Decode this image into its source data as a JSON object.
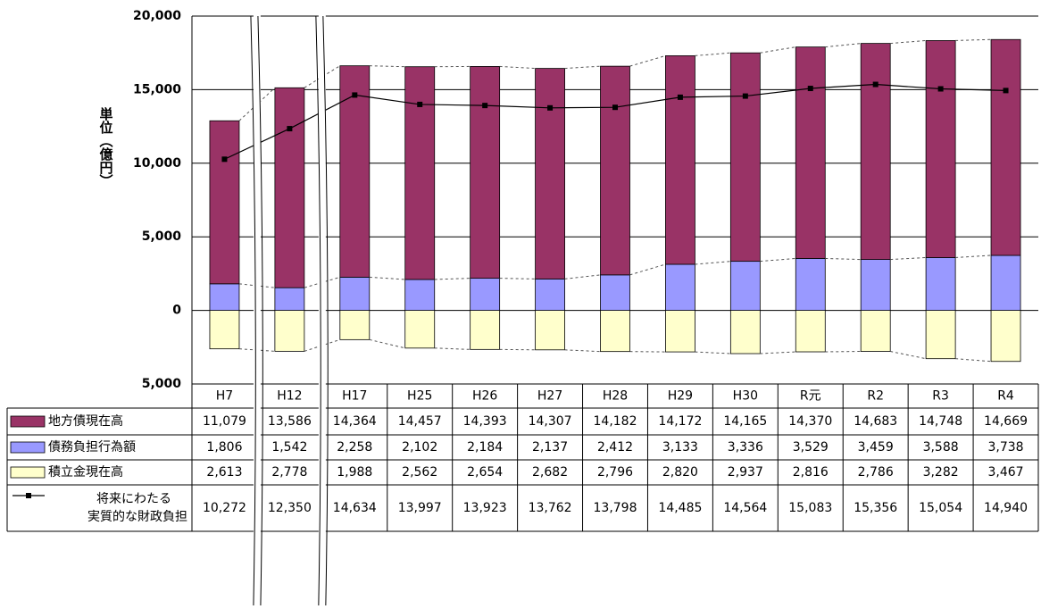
{
  "chart_data": {
    "type": "stacked-bar-line",
    "y_label": "単位（億円）",
    "categories": [
      "H7",
      "H12",
      "H17",
      "H25",
      "H26",
      "H27",
      "H28",
      "H29",
      "H30",
      "R元",
      "R2",
      "R3",
      "R4"
    ],
    "series": [
      {
        "name": "地方債現在高",
        "kind": "bar",
        "color": "#993366",
        "values": [
          11079,
          13586,
          14364,
          14457,
          14393,
          14307,
          14182,
          14172,
          14165,
          14370,
          14683,
          14748,
          14669
        ],
        "value_labels": [
          "11,079",
          "13,586",
          "14,364",
          "14,457",
          "14,393",
          "14,307",
          "14,182",
          "14,172",
          "14,165",
          "14,370",
          "14,683",
          "14,748",
          "14,669"
        ]
      },
      {
        "name": "債務負担行為額",
        "kind": "bar",
        "color": "#9999ff",
        "values": [
          1806,
          1542,
          2258,
          2102,
          2184,
          2137,
          2412,
          3133,
          3336,
          3529,
          3459,
          3588,
          3738
        ],
        "value_labels": [
          "1,806",
          "1,542",
          "2,258",
          "2,102",
          "2,184",
          "2,137",
          "2,412",
          "3,133",
          "3,336",
          "3,529",
          "3,459",
          "3,588",
          "3,738"
        ]
      },
      {
        "name": "積立金現在高",
        "kind": "bar",
        "color": "#ffffcc",
        "values": [
          -2613,
          -2778,
          -1988,
          -2562,
          -2654,
          -2682,
          -2796,
          -2820,
          -2937,
          -2816,
          -2786,
          -3282,
          -3467
        ],
        "value_labels": [
          "2,613",
          "2,778",
          "1,988",
          "2,562",
          "2,654",
          "2,682",
          "2,796",
          "2,820",
          "2,937",
          "2,816",
          "2,786",
          "3,282",
          "3,467"
        ]
      },
      {
        "name": "将来にわたる\n実質的な財政負担",
        "kind": "line",
        "color": "#000000",
        "values": [
          10272,
          12350,
          14634,
          13997,
          13923,
          13762,
          13798,
          14485,
          14564,
          15083,
          15356,
          15054,
          14940
        ],
        "value_labels": [
          "10,272",
          "12,350",
          "14,634",
          "13,997",
          "13,923",
          "13,762",
          "13,798",
          "14,485",
          "14,564",
          "15,083",
          "15,356",
          "15,054",
          "14,940"
        ]
      }
    ],
    "ylim": [
      -5000,
      20000
    ],
    "yticks": [
      {
        "value": -5000,
        "label": "5,000"
      },
      0,
      {
        "value": 5000,
        "label": "5,000"
      },
      {
        "value": 10000,
        "label": "10,000"
      },
      {
        "value": 15000,
        "label": "15,000"
      },
      {
        "value": 20000,
        "label": "20,000"
      }
    ],
    "negative_tick_color": "#ff0000",
    "grid": true
  }
}
